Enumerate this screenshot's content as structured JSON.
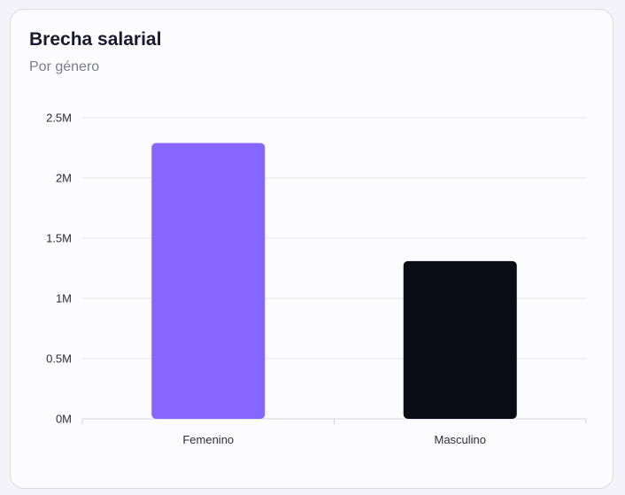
{
  "card": {
    "title": "Brecha salarial",
    "subtitle": "Por género"
  },
  "chart_data": {
    "type": "bar",
    "title": "Brecha salarial",
    "subtitle": "Por género",
    "categories": [
      "Femenino",
      "Masculino"
    ],
    "values": [
      2290000,
      1310000
    ],
    "bar_colors": [
      "#8566ff",
      "#0b0b16"
    ],
    "ylim": [
      0,
      2500000
    ],
    "y_ticks": [
      {
        "value": 0,
        "label": "0M"
      },
      {
        "value": 500000,
        "label": "0.5M"
      },
      {
        "value": 1000000,
        "label": "1M"
      },
      {
        "value": 1500000,
        "label": "1.5M"
      },
      {
        "value": 2000000,
        "label": "2M"
      },
      {
        "value": 2500000,
        "label": "2.5M"
      }
    ],
    "grid": true,
    "legend": false
  }
}
